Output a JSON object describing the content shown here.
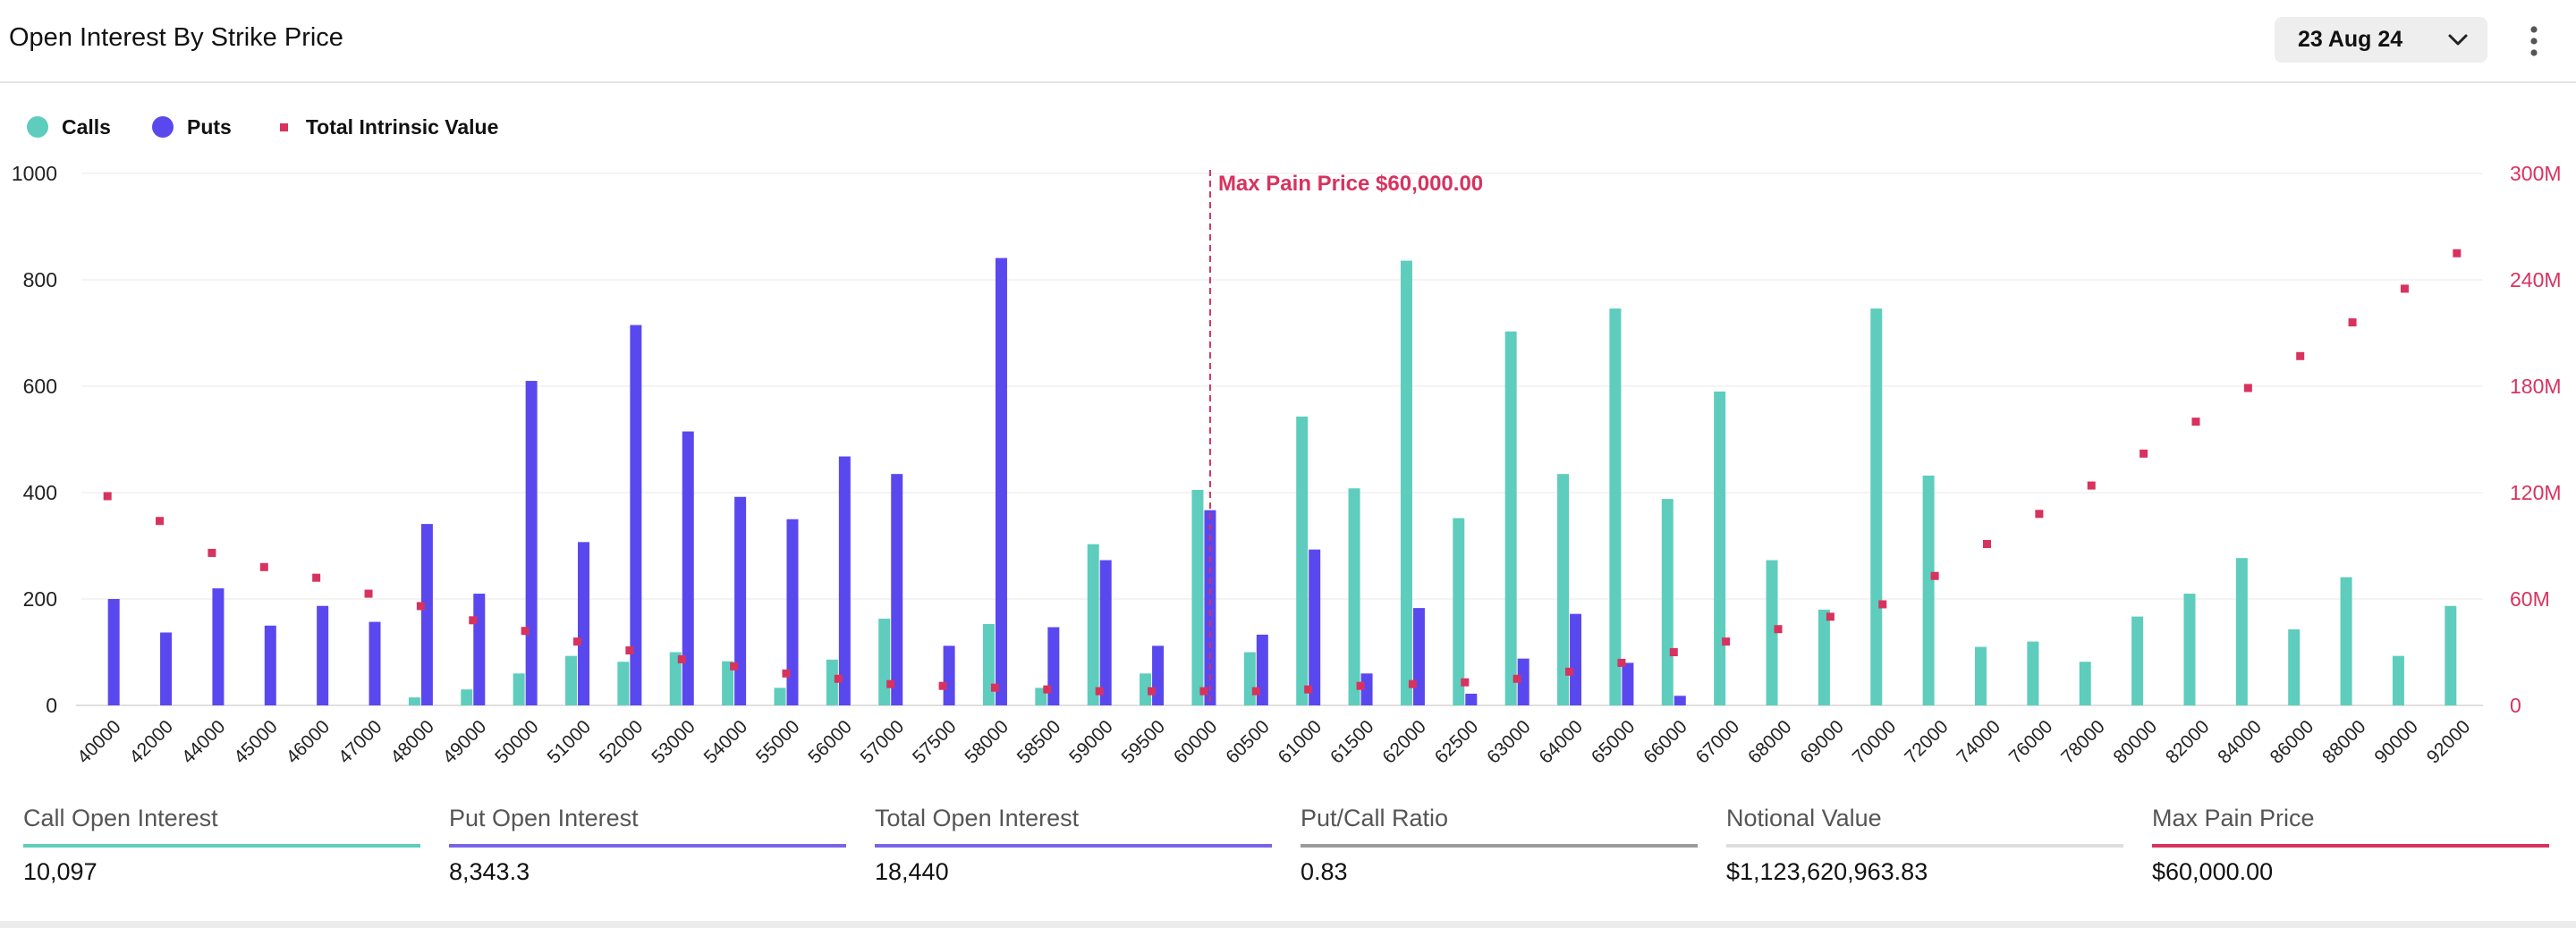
{
  "header": {
    "title": "Open Interest By Strike Price",
    "date_value": "23 Aug 24",
    "chevron_icon": "chevron-down-icon",
    "more_icon": "more-vertical-icon"
  },
  "legend": [
    {
      "label": "Calls",
      "color": "#5ecdbd",
      "shape": "circle"
    },
    {
      "label": "Puts",
      "color": "#5a48ef",
      "shape": "circle"
    },
    {
      "label": "Total Intrinsic Value",
      "color": "#d8325f",
      "shape": "square"
    }
  ],
  "chart_data": {
    "type": "bar",
    "categories": [
      "40000",
      "42000",
      "44000",
      "45000",
      "46000",
      "47000",
      "48000",
      "49000",
      "50000",
      "51000",
      "52000",
      "53000",
      "54000",
      "55000",
      "56000",
      "57000",
      "57500",
      "58000",
      "58500",
      "59000",
      "59500",
      "60000",
      "60500",
      "61000",
      "61500",
      "62000",
      "62500",
      "63000",
      "64000",
      "65000",
      "66000",
      "67000",
      "68000",
      "69000",
      "70000",
      "72000",
      "74000",
      "76000",
      "78000",
      "80000",
      "82000",
      "84000",
      "86000",
      "88000",
      "90000",
      "92000"
    ],
    "series": [
      {
        "name": "Calls",
        "axis": "left",
        "color": "#5ecdbd",
        "values": [
          0,
          0,
          0,
          0,
          0,
          0,
          15,
          30,
          60,
          93,
          82,
          100,
          83,
          33,
          86,
          163,
          0,
          153,
          33,
          303,
          60,
          405,
          100,
          543,
          408,
          836,
          352,
          703,
          435,
          746,
          388,
          590,
          273,
          180,
          746,
          432,
          110,
          120,
          82,
          167,
          210,
          277,
          143,
          241,
          93,
          187
        ]
      },
      {
        "name": "Puts",
        "axis": "left",
        "color": "#5a48ef",
        "values": [
          200,
          137,
          220,
          150,
          187,
          157,
          341,
          210,
          610,
          307,
          715,
          515,
          392,
          350,
          468,
          435,
          112,
          841,
          147,
          273,
          112,
          367,
          133,
          293,
          60,
          183,
          22,
          88,
          172,
          80,
          18,
          0,
          0,
          0,
          0,
          0,
          0,
          0,
          0,
          0,
          0,
          0,
          0,
          0,
          0,
          0
        ]
      },
      {
        "name": "Total Intrinsic Value",
        "axis": "right",
        "color": "#d8325f",
        "type": "scatter",
        "values": [
          118000000,
          104000000,
          86000000,
          78000000,
          72000000,
          63000000,
          56000000,
          48000000,
          42000000,
          36000000,
          31000000,
          26000000,
          22000000,
          18000000,
          15000000,
          12000000,
          11000000,
          10000000,
          9000000,
          8000000,
          8000000,
          8000000,
          8000000,
          9000000,
          11000000,
          12000000,
          13000000,
          15000000,
          19000000,
          24000000,
          30000000,
          36000000,
          43000000,
          50000000,
          57000000,
          73000000,
          91000000,
          108000000,
          124000000,
          142000000,
          160000000,
          179000000,
          197000000,
          216000000,
          235000000,
          255000000
        ]
      }
    ],
    "y_left": {
      "ticks": [
        "0",
        "200",
        "400",
        "600",
        "800",
        "1000"
      ],
      "min": 0,
      "max": 1000
    },
    "y_right": {
      "ticks": [
        "0",
        "60M",
        "120M",
        "180M",
        "240M",
        "300M"
      ],
      "min": 0,
      "max": 300000000
    },
    "grid": true,
    "legend_position": "top-left",
    "annotation": {
      "category": "60000",
      "label": "Max Pain Price $60,000.00",
      "color": "#d8325f"
    }
  },
  "stats": [
    {
      "label": "Call Open Interest",
      "value": "10,097",
      "color": "#5ecdbd"
    },
    {
      "label": "Put Open Interest",
      "value": "8,343.3",
      "color": "#7a63e6"
    },
    {
      "label": "Total Open Interest",
      "value": "18,440",
      "color": "#7a63e6"
    },
    {
      "label": "Put/Call Ratio",
      "value": "0.83",
      "color": "#9b9b9b"
    },
    {
      "label": "Notional Value",
      "value": "$1,123,620,963.83",
      "color": "#dddddd"
    },
    {
      "label": "Max Pain Price",
      "value": "$60,000.00",
      "color": "#d8325f"
    }
  ]
}
